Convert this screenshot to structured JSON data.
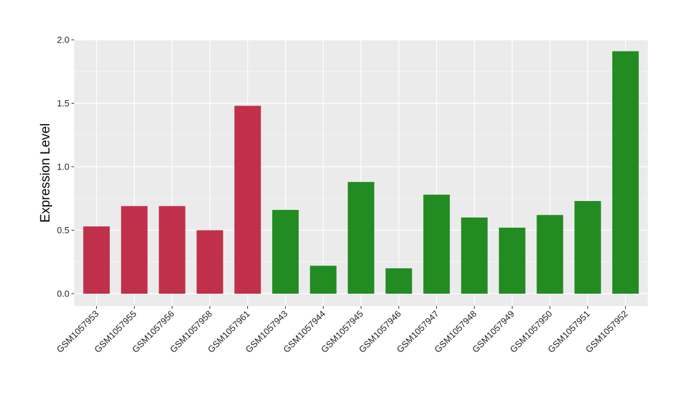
{
  "chart_data": {
    "type": "bar",
    "title": "",
    "xlabel": "",
    "ylabel": "Expression Level",
    "ylim": [
      0,
      2.0
    ],
    "yticks": [
      "0.0",
      "0.5",
      "1.0",
      "1.5",
      "2.0"
    ],
    "grid": true,
    "legend": "none",
    "background": "#EBEBEB",
    "gridline_color": "#FFFFFF",
    "categories": [
      "GSM1057953",
      "GSM1057955",
      "GSM1057956",
      "GSM1057958",
      "GSM1057961",
      "GSM1057943",
      "GSM1057944",
      "GSM1057945",
      "GSM1057946",
      "GSM1057947",
      "GSM1057948",
      "GSM1057949",
      "GSM1057950",
      "GSM1057951",
      "GSM1057952"
    ],
    "values": [
      0.53,
      0.69,
      0.69,
      0.5,
      1.48,
      0.66,
      0.22,
      0.88,
      0.2,
      0.78,
      0.6,
      0.52,
      0.62,
      0.73,
      1.91
    ],
    "bar_colors": [
      "#C0304A",
      "#C0304A",
      "#C0304A",
      "#C0304A",
      "#C0304A",
      "#228B22",
      "#228B22",
      "#228B22",
      "#228B22",
      "#228B22",
      "#228B22",
      "#228B22",
      "#228B22",
      "#228B22",
      "#228B22"
    ]
  }
}
